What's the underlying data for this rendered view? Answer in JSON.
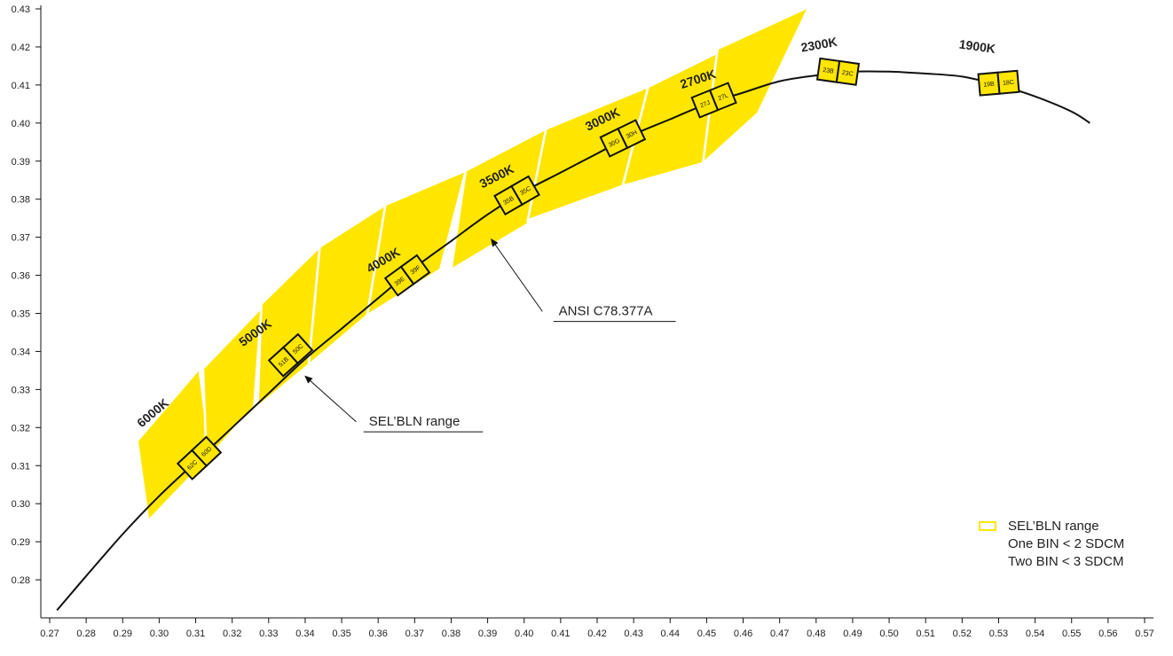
{
  "chart_data": {
    "type": "line",
    "title": "",
    "xlabel": "",
    "ylabel": "",
    "xlim": [
      0.27,
      0.57
    ],
    "ylim": [
      0.27,
      0.43
    ],
    "x_ticks": [
      "0.27",
      "0.28",
      "0.29",
      "0.30",
      "0.31",
      "0.32",
      "0.33",
      "0.34",
      "0.35",
      "0.36",
      "0.37",
      "0.38",
      "0.39",
      "0.40",
      "0.41",
      "0.42",
      "0.43",
      "0.44",
      "0.45",
      "0.46",
      "0.47",
      "0.48",
      "0.49",
      "0.50",
      "0.51",
      "0.52",
      "0.53",
      "0.54",
      "0.55",
      "0.56",
      "0.57"
    ],
    "y_ticks": [
      "0.28",
      "0.29",
      "0.30",
      "0.31",
      "0.32",
      "0.33",
      "0.34",
      "0.35",
      "0.36",
      "0.37",
      "0.38",
      "0.39",
      "0.40",
      "0.41",
      "0.42",
      "0.43"
    ],
    "grid": false,
    "colors": {
      "range": "#ffe600",
      "curve": "#111111",
      "outline": "#111111"
    },
    "series": [
      {
        "name": "",
        "points": [
          [
            0.272,
            0.272
          ],
          [
            0.28,
            0.281
          ],
          [
            0.29,
            0.292
          ],
          [
            0.3,
            0.302
          ],
          [
            0.31,
            0.311
          ],
          [
            0.32,
            0.32
          ],
          [
            0.33,
            0.329
          ],
          [
            0.34,
            0.338
          ],
          [
            0.35,
            0.346
          ],
          [
            0.36,
            0.354
          ],
          [
            0.37,
            0.362
          ],
          [
            0.38,
            0.369
          ],
          [
            0.39,
            0.376
          ],
          [
            0.4,
            0.382
          ],
          [
            0.41,
            0.387
          ],
          [
            0.42,
            0.392
          ],
          [
            0.43,
            0.397
          ],
          [
            0.44,
            0.401
          ],
          [
            0.45,
            0.405
          ],
          [
            0.46,
            0.408
          ],
          [
            0.47,
            0.411
          ],
          [
            0.48,
            0.4125
          ],
          [
            0.49,
            0.4135
          ],
          [
            0.5,
            0.4135
          ],
          [
            0.51,
            0.413
          ],
          [
            0.52,
            0.4122
          ],
          [
            0.53,
            0.41
          ],
          [
            0.54,
            0.407
          ],
          [
            0.55,
            0.403
          ],
          [
            0.555,
            0.4
          ]
        ]
      }
    ],
    "ranges": [
      {
        "cct": "6000K",
        "polygon": [
          [
            0.294,
            0.3165
          ],
          [
            0.311,
            0.3355
          ],
          [
            0.314,
            0.3125
          ],
          [
            0.297,
            0.2955
          ]
        ]
      },
      {
        "cct": "5000K",
        "polygon": [
          [
            0.312,
            0.3355
          ],
          [
            0.328,
            0.3515
          ],
          [
            0.326,
            0.3255
          ],
          [
            0.313,
            0.3115
          ]
        ]
      },
      {
        "cct": "5000K",
        "polygon": [
          [
            0.328,
            0.3525
          ],
          [
            0.344,
            0.3675
          ],
          [
            0.341,
            0.3365
          ],
          [
            0.327,
            0.3255
          ]
        ]
      },
      {
        "cct": "4000K",
        "polygon": [
          [
            0.344,
            0.3675
          ],
          [
            0.362,
            0.3785
          ],
          [
            0.357,
            0.3495
          ],
          [
            0.341,
            0.3365
          ]
        ]
      },
      {
        "cct": "4000K",
        "polygon": [
          [
            0.362,
            0.3785
          ],
          [
            0.384,
            0.3875
          ],
          [
            0.377,
            0.3615
          ],
          [
            0.357,
            0.3495
          ]
        ]
      },
      {
        "cct": "3500K",
        "polygon": [
          [
            0.384,
            0.3875
          ],
          [
            0.406,
            0.3985
          ],
          [
            0.401,
            0.3735
          ],
          [
            0.38,
            0.3615
          ]
        ]
      },
      {
        "cct": "3000K",
        "polygon": [
          [
            0.406,
            0.3985
          ],
          [
            0.434,
            0.4095
          ],
          [
            0.427,
            0.3835
          ],
          [
            0.401,
            0.3745
          ]
        ]
      },
      {
        "cct": "3000K",
        "polygon": [
          [
            0.434,
            0.4095
          ],
          [
            0.453,
            0.4185
          ],
          [
            0.449,
            0.3895
          ],
          [
            0.427,
            0.3835
          ]
        ]
      },
      {
        "cct": "2700K",
        "polygon": [
          [
            0.453,
            0.4195
          ],
          [
            0.478,
            0.4305
          ],
          [
            0.464,
            0.4025
          ],
          [
            0.449,
            0.3895
          ]
        ]
      }
    ],
    "bins": [
      {
        "cct": "6000K",
        "labels": [
          "62C",
          "60D"
        ],
        "center": [
          0.311,
          0.312
        ],
        "angle": 43
      },
      {
        "cct": "5000K",
        "labels": [
          "51B",
          "50C"
        ],
        "center": [
          0.336,
          0.339
        ],
        "angle": 42
      },
      {
        "cct": "4000K",
        "labels": [
          "39E",
          "39F"
        ],
        "center": [
          0.368,
          0.36
        ],
        "angle": 36
      },
      {
        "cct": "3500K",
        "labels": [
          "35B",
          "35C"
        ],
        "center": [
          0.398,
          0.381
        ],
        "angle": 30
      },
      {
        "cct": "3000K",
        "labels": [
          "30G",
          "30H"
        ],
        "center": [
          0.427,
          0.396
        ],
        "angle": 26
      },
      {
        "cct": "2700K",
        "labels": [
          "27J",
          "27L"
        ],
        "center": [
          0.452,
          0.406
        ],
        "angle": 22
      },
      {
        "cct": "2300K",
        "labels": [
          "23B",
          "23C"
        ],
        "center": [
          0.486,
          0.4135
        ],
        "angle": -8
      },
      {
        "cct": "1900K",
        "labels": [
          "19B",
          "18C"
        ],
        "center": [
          0.53,
          0.4105
        ],
        "angle": 5
      }
    ],
    "cct_labels": [
      {
        "text": "6000K",
        "at": [
          0.299,
          0.323
        ],
        "angle": -40
      },
      {
        "text": "5000K",
        "at": [
          0.327,
          0.344
        ],
        "angle": -36
      },
      {
        "text": "4000K",
        "at": [
          0.362,
          0.363
        ],
        "angle": -31
      },
      {
        "text": "3500K",
        "at": [
          0.393,
          0.385
        ],
        "angle": -27
      },
      {
        "text": "3000K",
        "at": [
          0.422,
          0.4
        ],
        "angle": -26
      },
      {
        "text": "2700K",
        "at": [
          0.448,
          0.4105
        ],
        "angle": -18
      },
      {
        "text": "2300K",
        "at": [
          0.481,
          0.4195
        ],
        "angle": -10
      },
      {
        "text": "1900K",
        "at": [
          0.524,
          0.419
        ],
        "angle": 8
      }
    ],
    "annotations": [
      {
        "text": "ANSI C78.377A",
        "label_at": [
          0.408,
          0.3495
        ],
        "arrow_from": [
          0.405,
          0.3505
        ],
        "arrow_to": [
          0.391,
          0.3695
        ]
      },
      {
        "text": "SEL’BLN range",
        "label_at": [
          0.356,
          0.3205
        ],
        "arrow_from": [
          0.354,
          0.3215
        ],
        "arrow_to": [
          0.34,
          0.3335
        ]
      }
    ],
    "legend": {
      "position": "bottom-right",
      "lines": [
        "SEL’BLN range",
        "One BIN < 2 SDCM",
        "Two BIN < 3 SDCM"
      ]
    }
  }
}
